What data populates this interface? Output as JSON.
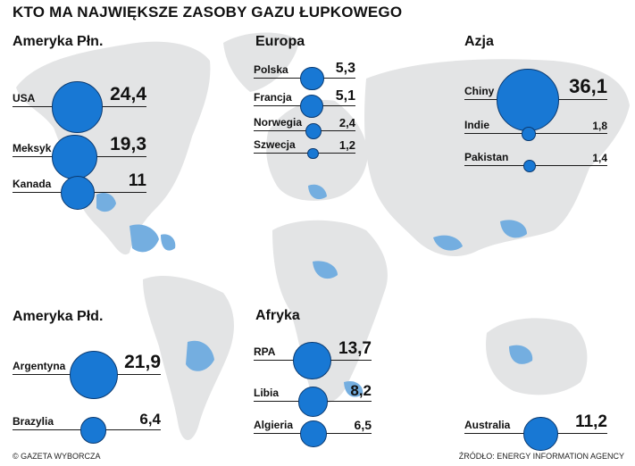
{
  "title": "KTO MA NAJWIĘKSZE ZASOBY GAZU ŁUPKOWEGO",
  "footer": {
    "left": "© GAZETA WYBORCZA",
    "right": "ŹRÓDŁO: ENERGY INFORMATION AGENCY"
  },
  "colors": {
    "bubble": "#1878d4",
    "bubble_border": "#0b3a70",
    "map_land": "#e3e4e5",
    "shale_gas_areas": "#74aee0",
    "text": "#111111"
  },
  "chart_data": {
    "type": "bubble",
    "title": "KTO MA NAJWIĘKSZE ZASOBY GAZU ŁUPKOWEGO",
    "groups": [
      {
        "region": "Ameryka Płn.",
        "items": [
          {
            "country": "USA",
            "value": 24.4,
            "value_label": "24,4"
          },
          {
            "country": "Meksyk",
            "value": 19.3,
            "value_label": "19,3"
          },
          {
            "country": "Kanada",
            "value": 11,
            "value_label": "11"
          }
        ]
      },
      {
        "region": "Europa",
        "items": [
          {
            "country": "Polska",
            "value": 5.3,
            "value_label": "5,3"
          },
          {
            "country": "Francja",
            "value": 5.1,
            "value_label": "5,1"
          },
          {
            "country": "Norwegia",
            "value": 2.4,
            "value_label": "2,4"
          },
          {
            "country": "Szwecja",
            "value": 1.2,
            "value_label": "1,2"
          }
        ]
      },
      {
        "region": "Azja",
        "items": [
          {
            "country": "Chiny",
            "value": 36.1,
            "value_label": "36,1"
          },
          {
            "country": "Indie",
            "value": 1.8,
            "value_label": "1,8"
          },
          {
            "country": "Pakistan",
            "value": 1.4,
            "value_label": "1,4"
          }
        ]
      },
      {
        "region": "Ameryka Płd.",
        "items": [
          {
            "country": "Argentyna",
            "value": 21.9,
            "value_label": "21,9"
          },
          {
            "country": "Brazylia",
            "value": 6.4,
            "value_label": "6,4"
          }
        ]
      },
      {
        "region": "Afryka",
        "items": [
          {
            "country": "RPA",
            "value": 13.7,
            "value_label": "13,7"
          },
          {
            "country": "Libia",
            "value": 8.2,
            "value_label": "8,2"
          },
          {
            "country": "Algieria",
            "value": 6.5,
            "value_label": "6,5"
          }
        ]
      },
      {
        "region": "Australia",
        "items": [
          {
            "country": "Australia",
            "value": 11.2,
            "value_label": "11,2"
          }
        ]
      }
    ]
  }
}
